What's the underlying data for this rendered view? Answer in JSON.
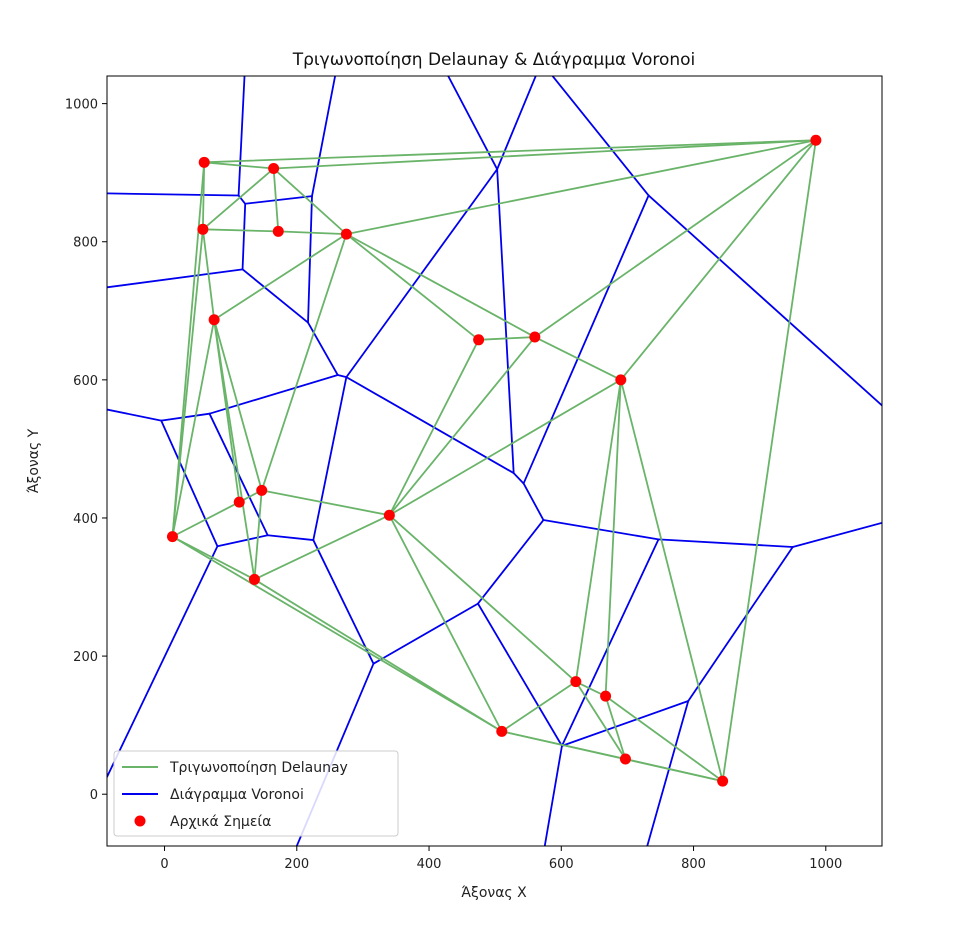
{
  "chart_data": {
    "type": "scatter",
    "title": "Τριγωνοποίηση Delaunay & Διάγραμμα Voronoi",
    "xlabel": "Άξονας X",
    "ylabel": "Άξονας Y",
    "xlim": [
      -87,
      1085
    ],
    "ylim": [
      -75,
      1040
    ],
    "xticks": [
      0,
      200,
      400,
      600,
      800,
      1000
    ],
    "yticks": [
      0,
      200,
      400,
      600,
      800,
      1000
    ],
    "grid": false,
    "legend_position": "lower-left",
    "colors": {
      "delaunay": "#6ab46a",
      "voronoi": "#0000ee",
      "points": "#ff0000"
    },
    "legend": [
      {
        "label": "Τριγωνοποίηση Delaunay",
        "kind": "line",
        "series": "delaunay"
      },
      {
        "label": "Διάγραμμα Voronoi",
        "kind": "line",
        "series": "voronoi"
      },
      {
        "label": "Αρχικά Σημεία",
        "kind": "marker",
        "series": "points"
      }
    ],
    "points": [
      [
        60,
        915
      ],
      [
        165,
        906
      ],
      [
        985,
        947
      ],
      [
        58,
        818
      ],
      [
        172,
        815
      ],
      [
        275,
        811
      ],
      [
        75,
        687
      ],
      [
        475,
        658
      ],
      [
        560,
        662
      ],
      [
        690,
        600
      ],
      [
        147,
        440
      ],
      [
        113,
        423
      ],
      [
        12,
        373
      ],
      [
        340,
        404
      ],
      [
        136,
        311
      ],
      [
        622,
        163
      ],
      [
        667,
        142
      ],
      [
        510,
        91
      ],
      [
        697,
        51
      ],
      [
        844,
        19
      ]
    ],
    "delaunay_edges": [
      [
        0,
        1
      ],
      [
        0,
        2
      ],
      [
        1,
        2
      ],
      [
        0,
        3
      ],
      [
        0,
        12
      ],
      [
        3,
        12
      ],
      [
        3,
        4
      ],
      [
        4,
        1
      ],
      [
        3,
        1
      ],
      [
        3,
        6
      ],
      [
        1,
        5
      ],
      [
        4,
        5
      ],
      [
        5,
        2
      ],
      [
        6,
        5
      ],
      [
        6,
        10
      ],
      [
        6,
        11
      ],
      [
        6,
        12
      ],
      [
        6,
        14
      ],
      [
        5,
        7
      ],
      [
        5,
        8
      ],
      [
        5,
        10
      ],
      [
        7,
        8
      ],
      [
        8,
        2
      ],
      [
        8,
        9
      ],
      [
        9,
        2
      ],
      [
        9,
        19
      ],
      [
        2,
        19
      ],
      [
        7,
        13
      ],
      [
        8,
        13
      ],
      [
        9,
        13
      ],
      [
        10,
        13
      ],
      [
        11,
        12
      ],
      [
        10,
        11
      ],
      [
        10,
        14
      ],
      [
        12,
        14
      ],
      [
        13,
        14
      ],
      [
        12,
        17
      ],
      [
        14,
        17
      ],
      [
        13,
        17
      ],
      [
        13,
        15
      ],
      [
        15,
        9
      ],
      [
        16,
        9
      ],
      [
        15,
        16
      ],
      [
        15,
        17
      ],
      [
        17,
        18
      ],
      [
        18,
        16
      ],
      [
        16,
        19
      ],
      [
        18,
        19
      ],
      [
        17,
        19
      ],
      [
        15,
        18
      ]
    ],
    "voronoi_edges": [
      [
        [
          -87,
          870
        ],
        [
          112,
          867
        ]
      ],
      [
        [
          112,
          867
        ],
        [
          122,
          855
        ]
      ],
      [
        [
          112,
          867
        ],
        [
          122,
          1060
        ]
      ],
      [
        [
          122,
          855
        ],
        [
          223,
          866
        ]
      ],
      [
        [
          122,
          855
        ],
        [
          118,
          760
        ]
      ],
      [
        [
          223,
          866
        ],
        [
          262,
          1060
        ]
      ],
      [
        [
          223,
          866
        ],
        [
          217,
          683
        ]
      ],
      [
        [
          118,
          760
        ],
        [
          -87,
          734
        ]
      ],
      [
        [
          118,
          760
        ],
        [
          217,
          683
        ]
      ],
      [
        [
          217,
          683
        ],
        [
          262,
          607
        ]
      ],
      [
        [
          262,
          607
        ],
        [
          275,
          604
        ]
      ],
      [
        [
          262,
          607
        ],
        [
          68,
          551
        ]
      ],
      [
        [
          275,
          604
        ],
        [
          503,
          905
        ]
      ],
      [
        [
          275,
          604
        ],
        [
          225,
          368
        ]
      ],
      [
        [
          275,
          604
        ],
        [
          528,
          465
        ]
      ],
      [
        [
          503,
          905
        ],
        [
          528,
          465
        ]
      ],
      [
        [
          503,
          905
        ],
        [
          418,
          1060
        ]
      ],
      [
        [
          503,
          905
        ],
        [
          570,
          1060
        ]
      ],
      [
        [
          528,
          465
        ],
        [
          543,
          450
        ]
      ],
      [
        [
          543,
          450
        ],
        [
          573,
          397
        ]
      ],
      [
        [
          543,
          450
        ],
        [
          732,
          867
        ]
      ],
      [
        [
          732,
          867
        ],
        [
          570,
          1060
        ]
      ],
      [
        [
          732,
          867
        ],
        [
          1085,
          563
        ]
      ],
      [
        [
          573,
          397
        ],
        [
          747,
          369
        ]
      ],
      [
        [
          573,
          397
        ],
        [
          474,
          276
        ]
      ],
      [
        [
          747,
          369
        ],
        [
          950,
          358
        ]
      ],
      [
        [
          747,
          369
        ],
        [
          601,
          70
        ]
      ],
      [
        [
          950,
          358
        ],
        [
          1085,
          393
        ]
      ],
      [
        [
          950,
          358
        ],
        [
          792,
          135
        ]
      ],
      [
        [
          792,
          135
        ],
        [
          601,
          70
        ]
      ],
      [
        [
          792,
          135
        ],
        [
          730,
          -75
        ]
      ],
      [
        [
          601,
          70
        ],
        [
          474,
          276
        ]
      ],
      [
        [
          601,
          70
        ],
        [
          575,
          -75
        ]
      ],
      [
        [
          474,
          276
        ],
        [
          316,
          189
        ]
      ],
      [
        [
          316,
          189
        ],
        [
          225,
          368
        ]
      ],
      [
        [
          316,
          189
        ],
        [
          200,
          -75
        ]
      ],
      [
        [
          225,
          368
        ],
        [
          156,
          375
        ]
      ],
      [
        [
          156,
          375
        ],
        [
          68,
          551
        ]
      ],
      [
        [
          156,
          375
        ],
        [
          80,
          359
        ]
      ],
      [
        [
          68,
          551
        ],
        [
          -5,
          541
        ]
      ],
      [
        [
          -5,
          541
        ],
        [
          -87,
          557
        ]
      ],
      [
        [
          -5,
          541
        ],
        [
          80,
          359
        ]
      ],
      [
        [
          80,
          359
        ],
        [
          -87,
          25
        ]
      ]
    ]
  }
}
